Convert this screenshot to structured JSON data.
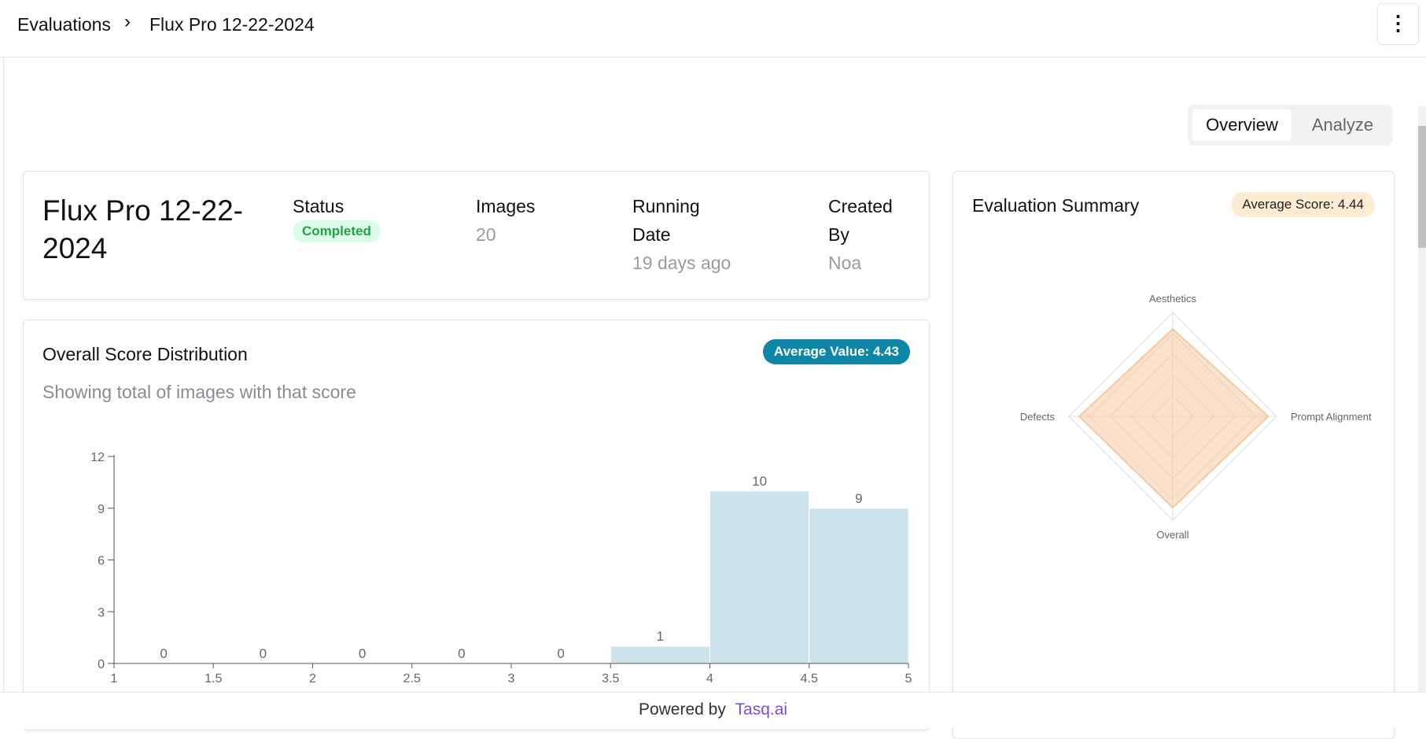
{
  "breadcrumb": {
    "parent": "Evaluations",
    "current": "Flux Pro 12-22-2024"
  },
  "tabs": [
    "Overview",
    "Analyze"
  ],
  "info": {
    "title": "Flux Pro 12-22-2024",
    "fields": [
      {
        "label": "Status",
        "value": "Completed"
      },
      {
        "label": "Images",
        "value": "20"
      },
      {
        "label": "Running Date",
        "value": "19 days ago"
      },
      {
        "label": "Created By",
        "value": "Noa"
      }
    ]
  },
  "footer": {
    "text": "Powered by",
    "link": "Tasq.ai"
  },
  "chart_data": [
    {
      "type": "histogram",
      "title": "Overall Score Distribution",
      "subtitle": "Showing total of images with that score",
      "badge": "Average Value: 4.43",
      "bins": [
        1,
        1.5,
        2,
        2.5,
        3,
        3.5,
        4,
        4.5,
        5
      ],
      "values": [
        0,
        0,
        0,
        0,
        0,
        1,
        10,
        9
      ],
      "color": "#cde3eb",
      "xlim": [
        1,
        5
      ],
      "xticks": [
        1,
        1.5,
        2,
        2.5,
        3,
        3.5,
        4,
        4.5,
        5
      ],
      "ylim": [
        0,
        12
      ],
      "yticks": [
        0,
        3,
        6,
        9,
        12
      ]
    },
    {
      "type": "radar",
      "title": "Evaluation Summary",
      "badge": "Average Score: 4.44",
      "categories": [
        "Aesthetics",
        "Prompt Alignment",
        "Overall",
        "Defects"
      ],
      "values": [
        4.2,
        4.6,
        4.4,
        4.5
      ],
      "color": "#f5c9a0",
      "rlim": [
        0,
        5
      ],
      "rticks": [
        1,
        2,
        3,
        4,
        5
      ]
    }
  ]
}
